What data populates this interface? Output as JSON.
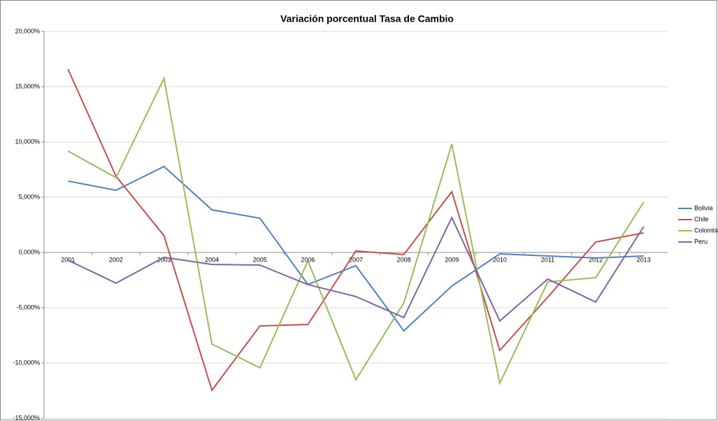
{
  "chart_data": {
    "type": "line",
    "title": "Variación porcentual  Tasa de Cambio",
    "categories": [
      "2001",
      "2002",
      "2003",
      "2004",
      "2005",
      "2006",
      "2007",
      "2008",
      "2009",
      "2010",
      "2011",
      "2012",
      "2013"
    ],
    "series": [
      {
        "name": "Bolivia",
        "color": "#4f81bd",
        "values": [
          6.46,
          5.63,
          7.78,
          3.86,
          3.1,
          -2.9,
          -1.2,
          -7.09,
          -3.04,
          -0.13,
          -0.32,
          -0.5,
          -0.32
        ]
      },
      {
        "name": "Chile",
        "color": "#c0504d",
        "values": [
          16.58,
          6.9,
          1.52,
          -12.47,
          -6.65,
          -6.52,
          0.13,
          -0.19,
          5.5,
          -8.86,
          -4.05,
          0.95,
          1.77
        ]
      },
      {
        "name": "Colombia",
        "color": "#9bbb59",
        "values": [
          9.18,
          6.77,
          15.76,
          -8.29,
          -10.44,
          -0.76,
          -11.52,
          -4.56,
          9.81,
          -11.84,
          -2.66,
          -2.28,
          4.56
        ]
      },
      {
        "name": "Peru",
        "color": "#8064a2",
        "values": [
          -0.7,
          -2.78,
          -0.44,
          -1.08,
          -1.14,
          -2.91,
          -3.99,
          -5.89,
          3.16,
          -6.2,
          -2.41,
          -4.49,
          2.34
        ]
      }
    ],
    "ylim": [
      -15,
      20
    ],
    "yticks": [
      {
        "value": -15,
        "label": "-15,000%"
      },
      {
        "value": -10,
        "label": "-10,000%"
      },
      {
        "value": -5,
        "label": "-5,000%"
      },
      {
        "value": 0,
        "label": "0,000%"
      },
      {
        "value": 5,
        "label": "5,000%"
      },
      {
        "value": 10,
        "label": "10,000%"
      },
      {
        "value": 15,
        "label": "15,000%"
      },
      {
        "value": 20,
        "label": "20,000%"
      }
    ],
    "grid": true,
    "legend": "right"
  }
}
